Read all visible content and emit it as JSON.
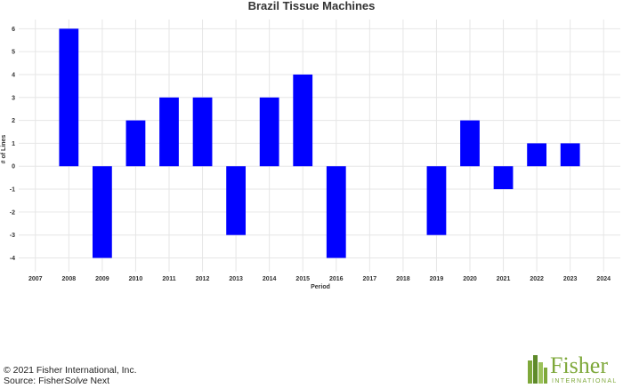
{
  "chart_data": {
    "type": "bar",
    "title": "Brazil Tissue Machines",
    "xlabel": "Period",
    "ylabel": "# of Lines",
    "categories": [
      "2007",
      "2008",
      "2009",
      "2010",
      "2011",
      "2012",
      "2013",
      "2014",
      "2015",
      "2016",
      "2017",
      "2018",
      "2019",
      "2020",
      "2021",
      "2022",
      "2023",
      "2024"
    ],
    "values": [
      0,
      6,
      -4,
      2,
      3,
      3,
      -3,
      3,
      4,
      -4,
      0,
      0,
      -3,
      2,
      -1,
      1,
      1,
      0
    ],
    "ylim": [
      -4.6,
      6.4
    ],
    "yticks": [
      -4,
      -3,
      -2,
      -1,
      0,
      1,
      2,
      3,
      4,
      5,
      6
    ],
    "grid": true,
    "bar_color": "#0000ff",
    "grid_color": "#e6e6e6"
  },
  "footer": {
    "copyright": "© 2021 Fisher International, Inc.",
    "source_prefix": "Source: Fisher",
    "source_italic": "Solve",
    "source_suffix": " Next"
  },
  "logo": {
    "word": "Fisher",
    "subword": "INTERNATIONAL",
    "color": "#7ea83a"
  }
}
